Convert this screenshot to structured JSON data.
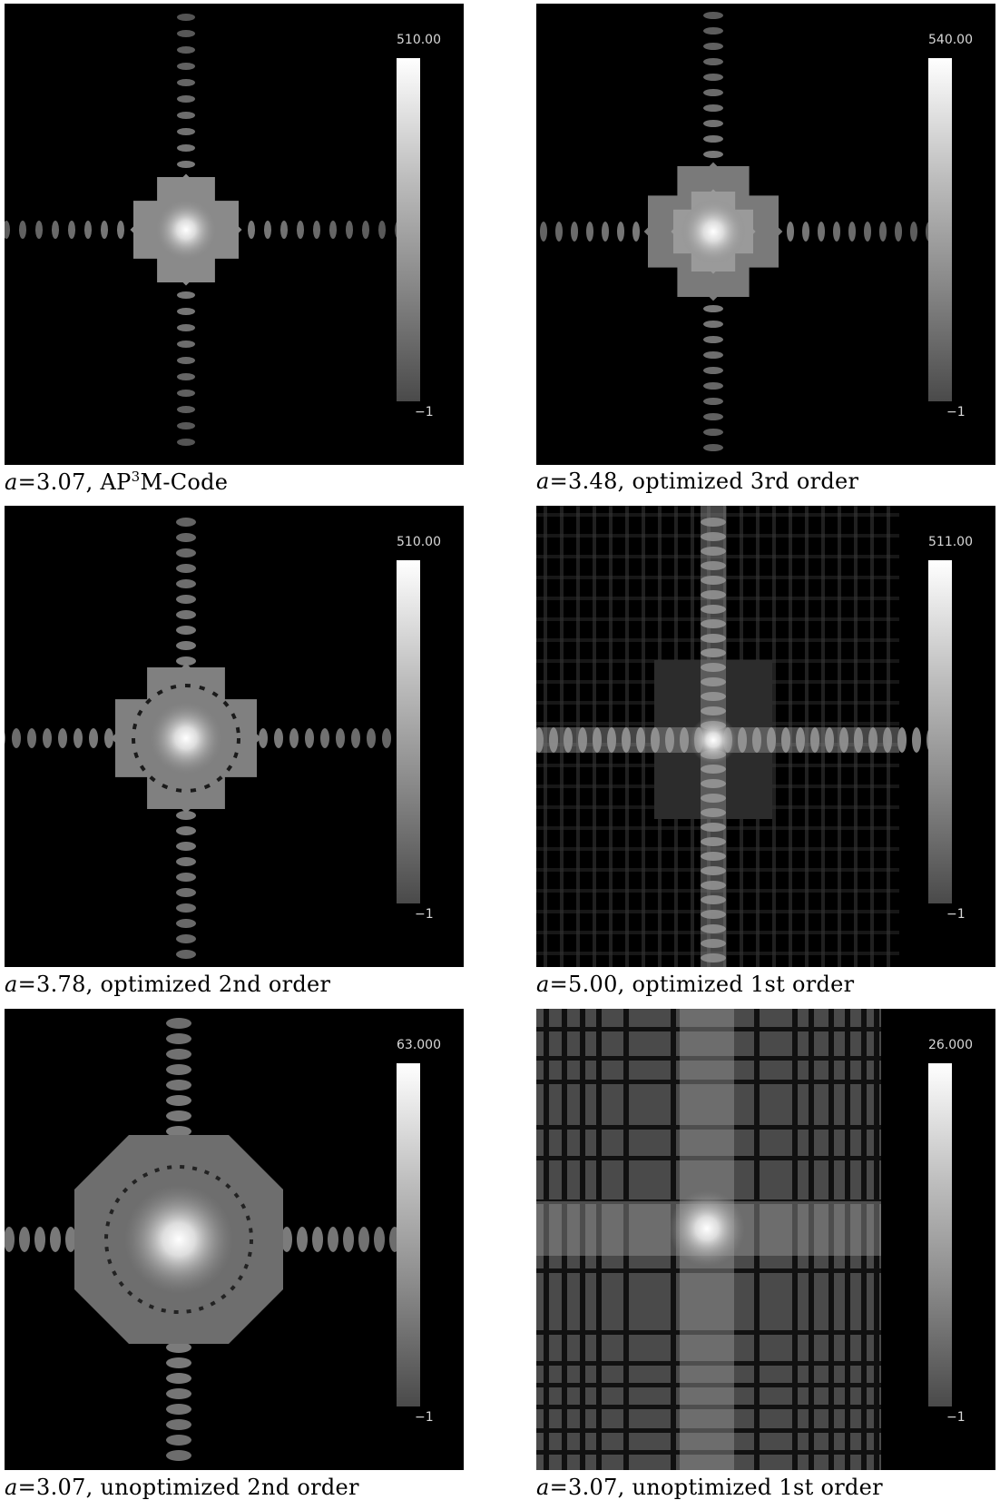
{
  "panels": [
    {
      "caption": {
        "variable": "a",
        "equals": "=3.07, ",
        "pre": "AP",
        "sup": "3",
        "post": "M-Code"
      },
      "colorbar": {
        "max": "510.00",
        "min": "−1"
      },
      "style": "ap3m"
    },
    {
      "caption": {
        "variable": "a",
        "equals": "=3.48, ",
        "pre": "optimized 3rd order",
        "sup": "",
        "post": ""
      },
      "colorbar": {
        "max": "540.00",
        "min": "−1"
      },
      "style": "opt3"
    },
    {
      "caption": {
        "variable": "a",
        "equals": "=3.78, ",
        "pre": "optimized 2nd order",
        "sup": "",
        "post": ""
      },
      "colorbar": {
        "max": "510.00",
        "min": "−1"
      },
      "style": "opt2"
    },
    {
      "caption": {
        "variable": "a",
        "equals": "=5.00, ",
        "pre": "optimized 1st order",
        "sup": "",
        "post": ""
      },
      "colorbar": {
        "max": "511.00",
        "min": "−1"
      },
      "style": "opt1"
    },
    {
      "caption": {
        "variable": "a",
        "equals": "=3.07, ",
        "pre": "unoptimized 2nd order",
        "sup": "",
        "post": ""
      },
      "colorbar": {
        "max": "63.000",
        "min": "−1"
      },
      "style": "unopt2"
    },
    {
      "caption": {
        "variable": "a",
        "equals": "=3.07, ",
        "pre": "unoptimized 1st order",
        "sup": "",
        "post": ""
      },
      "colorbar": {
        "max": "26.000",
        "min": "−1"
      },
      "style": "unopt1"
    }
  ]
}
